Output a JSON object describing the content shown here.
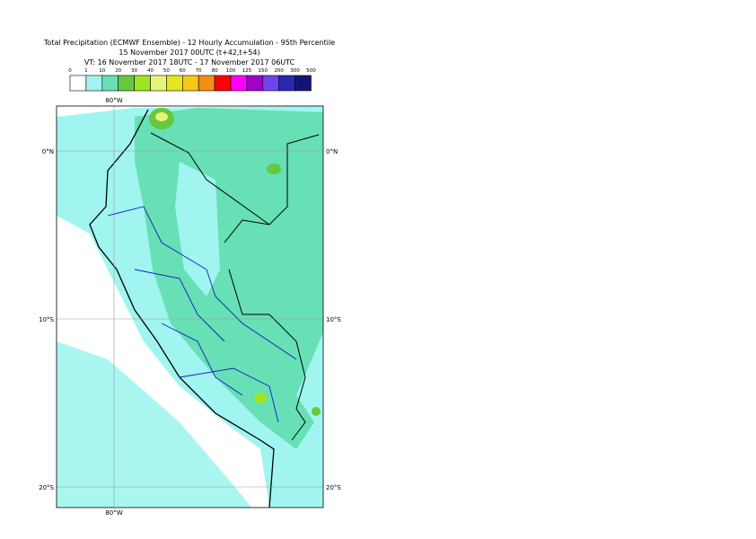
{
  "header": {
    "title_lines": [
      "Total Precipitation (ECMWF Ensemble) - 12 Hourly Accumulation - 95th Percentile",
      "15 November 2017 00UTC (t+42,t+54)",
      "VT: 16 November 2017 18UTC - 17 November 2017 06UTC"
    ]
  },
  "legend": {
    "labels": [
      "0",
      "1",
      "10",
      "20",
      "30",
      "40",
      "50",
      "60",
      "70",
      "80",
      "100",
      "125",
      "150",
      "200",
      "300",
      "500"
    ],
    "colors": [
      "#ffffff",
      "#a0f5f0",
      "#66e0b4",
      "#66c83c",
      "#a0e61e",
      "#e6f578",
      "#e6e61e",
      "#f5c814",
      "#f58c14",
      "#ff0000",
      "#ff00ff",
      "#a000c8",
      "#6e46f0",
      "#2828b4",
      "#141478"
    ]
  },
  "map": {
    "lat_labels": [
      "0°N",
      "10°S",
      "20°S"
    ],
    "lon_label": "80°W"
  }
}
